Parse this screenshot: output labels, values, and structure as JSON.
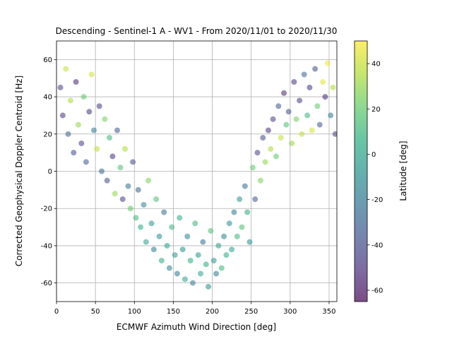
{
  "chart_data": {
    "type": "scatter",
    "title": "Descending - Sentinel-1 A - WV1 - From 2020/11/01 to 2020/11/30",
    "xlabel": "ECMWF Azimuth Wind Direction [deg]",
    "ylabel": "Corrected Geophysical Doppler Centroid [Hz]",
    "xlim": [
      0,
      360
    ],
    "ylim": [
      -70,
      70
    ],
    "xticks": [
      0,
      50,
      100,
      150,
      200,
      250,
      300,
      350
    ],
    "yticks": [
      -60,
      -40,
      -20,
      0,
      20,
      40,
      60
    ],
    "grid": true,
    "point_alpha": 0.55,
    "colorbar": {
      "label": "Latitude [deg]",
      "colormap": "viridis",
      "range": [
        -65,
        50
      ],
      "ticks": [
        -60,
        -40,
        -20,
        0,
        20,
        40
      ]
    },
    "series": [
      {
        "description": "Representative sample of scatter points: x = wind direction [deg], y = Doppler [Hz], c = latitude [deg]",
        "points": [
          [
            5,
            45,
            -45
          ],
          [
            8,
            30,
            -50
          ],
          [
            12,
            55,
            40
          ],
          [
            15,
            20,
            -30
          ],
          [
            18,
            38,
            35
          ],
          [
            22,
            10,
            -40
          ],
          [
            25,
            48,
            -55
          ],
          [
            28,
            25,
            30
          ],
          [
            32,
            15,
            -45
          ],
          [
            35,
            40,
            20
          ],
          [
            38,
            5,
            -35
          ],
          [
            42,
            32,
            -50
          ],
          [
            45,
            52,
            42
          ],
          [
            48,
            22,
            -20
          ],
          [
            52,
            12,
            38
          ],
          [
            55,
            35,
            -48
          ],
          [
            58,
            0,
            -30
          ],
          [
            62,
            28,
            25
          ],
          [
            65,
            -5,
            -40
          ],
          [
            68,
            18,
            10
          ],
          [
            72,
            8,
            -50
          ],
          [
            75,
            -12,
            30
          ],
          [
            78,
            22,
            -35
          ],
          [
            82,
            2,
            15
          ],
          [
            85,
            -15,
            -45
          ],
          [
            88,
            12,
            35
          ],
          [
            92,
            -8,
            -25
          ],
          [
            95,
            -20,
            20
          ],
          [
            98,
            5,
            -40
          ],
          [
            102,
            -25,
            10
          ],
          [
            105,
            -10,
            -30
          ],
          [
            108,
            -30,
            5
          ],
          [
            112,
            -18,
            -15
          ],
          [
            115,
            -38,
            0
          ],
          [
            118,
            -5,
            25
          ],
          [
            122,
            -28,
            -5
          ],
          [
            125,
            -42,
            -20
          ],
          [
            128,
            -15,
            15
          ],
          [
            132,
            -35,
            -10
          ],
          [
            135,
            -48,
            5
          ],
          [
            138,
            -22,
            -25
          ],
          [
            142,
            -40,
            0
          ],
          [
            145,
            -52,
            -15
          ],
          [
            148,
            -30,
            10
          ],
          [
            152,
            -45,
            -5
          ],
          [
            155,
            -55,
            -20
          ],
          [
            158,
            -25,
            5
          ],
          [
            162,
            -42,
            -10
          ],
          [
            165,
            -58,
            0
          ],
          [
            168,
            -35,
            -15
          ],
          [
            172,
            -48,
            5
          ],
          [
            175,
            -60,
            -20
          ],
          [
            178,
            -28,
            10
          ],
          [
            182,
            -45,
            -5
          ],
          [
            185,
            -55,
            0
          ],
          [
            188,
            -38,
            -25
          ],
          [
            192,
            -50,
            5
          ],
          [
            195,
            -62,
            -10
          ],
          [
            198,
            -32,
            15
          ],
          [
            202,
            -48,
            -5
          ],
          [
            205,
            -55,
            -20
          ],
          [
            208,
            -40,
            0
          ],
          [
            212,
            -52,
            10
          ],
          [
            215,
            -35,
            -15
          ],
          [
            218,
            -45,
            5
          ],
          [
            222,
            -28,
            -10
          ],
          [
            225,
            -42,
            0
          ],
          [
            228,
            -22,
            -20
          ],
          [
            232,
            -35,
            10
          ],
          [
            235,
            -15,
            -5
          ],
          [
            238,
            -30,
            15
          ],
          [
            242,
            -8,
            -25
          ],
          [
            245,
            -22,
            5
          ],
          [
            248,
            -38,
            -10
          ],
          [
            252,
            2,
            20
          ],
          [
            255,
            -15,
            -35
          ],
          [
            258,
            10,
            -45
          ],
          [
            262,
            -5,
            25
          ],
          [
            265,
            18,
            -40
          ],
          [
            268,
            5,
            30
          ],
          [
            272,
            22,
            -50
          ],
          [
            275,
            12,
            35
          ],
          [
            278,
            28,
            -45
          ],
          [
            282,
            8,
            20
          ],
          [
            285,
            35,
            -35
          ],
          [
            288,
            18,
            40
          ],
          [
            292,
            42,
            -55
          ],
          [
            295,
            25,
            15
          ],
          [
            298,
            32,
            -40
          ],
          [
            302,
            15,
            30
          ],
          [
            305,
            48,
            -50
          ],
          [
            308,
            28,
            25
          ],
          [
            312,
            38,
            -45
          ],
          [
            315,
            20,
            38
          ],
          [
            318,
            52,
            -30
          ],
          [
            322,
            30,
            10
          ],
          [
            325,
            45,
            -50
          ],
          [
            328,
            22,
            42
          ],
          [
            332,
            55,
            -40
          ],
          [
            335,
            35,
            20
          ],
          [
            338,
            25,
            -35
          ],
          [
            342,
            48,
            45
          ],
          [
            345,
            40,
            -55
          ],
          [
            348,
            58,
            48
          ],
          [
            352,
            30,
            -20
          ],
          [
            355,
            45,
            35
          ],
          [
            358,
            20,
            -45
          ]
        ]
      }
    ]
  }
}
